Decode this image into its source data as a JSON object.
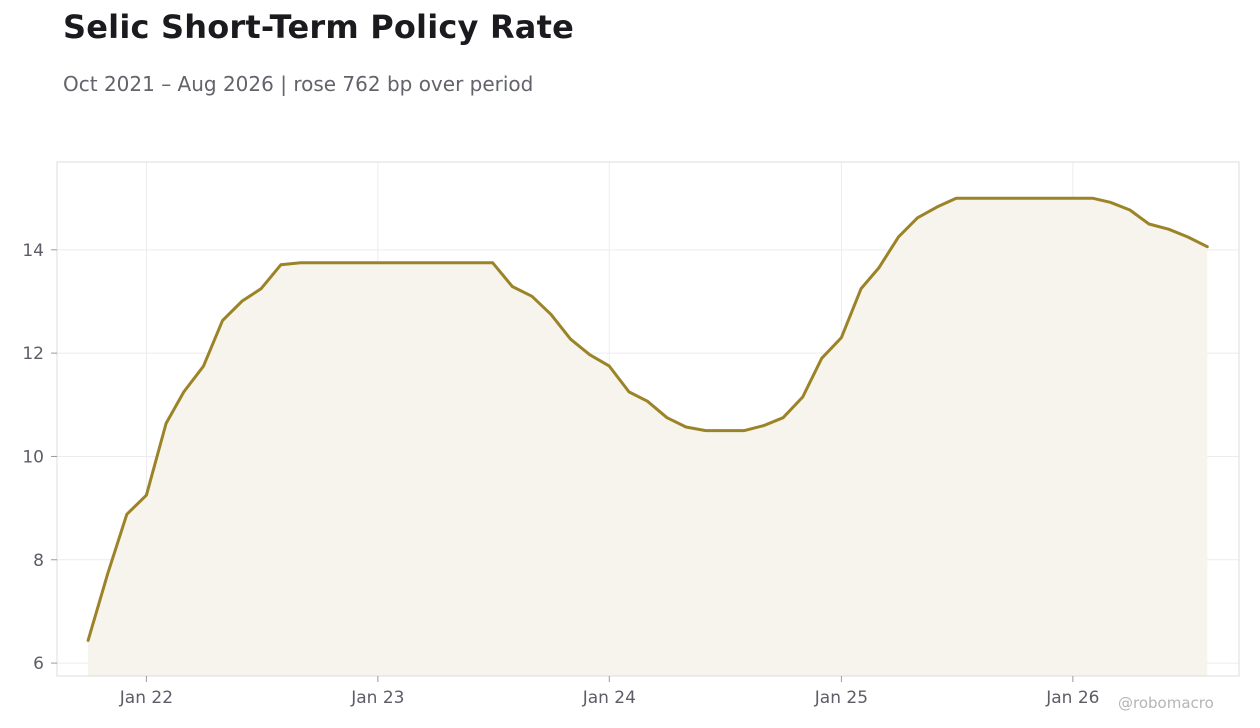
{
  "title": "Selic Short-Term Policy Rate",
  "subtitle": "Oct 2021 – Aug 2026 | rose 762 bp over period",
  "watermark": "@robomacro",
  "colors": {
    "line": "#9b8328",
    "fill": "#f7f4ed",
    "grid": "#ececec",
    "frame": "#dddddd"
  },
  "chart_data": {
    "type": "area",
    "x_type": "date",
    "ylim": [
      5.75,
      15.7
    ],
    "xlim": [
      "2021-08-13",
      "2026-09-20"
    ],
    "grid": true,
    "legend": "none",
    "yticks": [
      6,
      8,
      10,
      12,
      14
    ],
    "xticks": [
      {
        "date": "2022-01-01",
        "label": "Jan 22"
      },
      {
        "date": "2023-01-01",
        "label": "Jan 23"
      },
      {
        "date": "2024-01-01",
        "label": "Jan 24"
      },
      {
        "date": "2025-01-01",
        "label": "Jan 25"
      },
      {
        "date": "2026-01-01",
        "label": "Jan 26"
      }
    ],
    "series": [
      {
        "points": [
          [
            "2021-10-01",
            6.44
          ],
          [
            "2021-11-01",
            7.73
          ],
          [
            "2021-12-01",
            8.88
          ],
          [
            "2022-01-01",
            9.25
          ],
          [
            "2022-02-01",
            10.64
          ],
          [
            "2022-03-01",
            11.25
          ],
          [
            "2022-04-01",
            11.75
          ],
          [
            "2022-05-01",
            12.63
          ],
          [
            "2022-06-01",
            13.01
          ],
          [
            "2022-07-01",
            13.25
          ],
          [
            "2022-08-01",
            13.71
          ],
          [
            "2022-09-01",
            13.75
          ],
          [
            "2022-10-01",
            13.75
          ],
          [
            "2022-11-01",
            13.75
          ],
          [
            "2022-12-01",
            13.75
          ],
          [
            "2023-01-01",
            13.75
          ],
          [
            "2023-02-01",
            13.75
          ],
          [
            "2023-03-01",
            13.75
          ],
          [
            "2023-04-01",
            13.75
          ],
          [
            "2023-05-01",
            13.75
          ],
          [
            "2023-06-01",
            13.75
          ],
          [
            "2023-07-01",
            13.75
          ],
          [
            "2023-08-01",
            13.29
          ],
          [
            "2023-09-01",
            13.1
          ],
          [
            "2023-10-01",
            12.75
          ],
          [
            "2023-11-01",
            12.27
          ],
          [
            "2023-12-01",
            11.97
          ],
          [
            "2024-01-01",
            11.75
          ],
          [
            "2024-02-01",
            11.25
          ],
          [
            "2024-03-01",
            11.07
          ],
          [
            "2024-04-01",
            10.75
          ],
          [
            "2024-05-01",
            10.57
          ],
          [
            "2024-06-01",
            10.5
          ],
          [
            "2024-07-01",
            10.5
          ],
          [
            "2024-08-01",
            10.5
          ],
          [
            "2024-09-01",
            10.6
          ],
          [
            "2024-10-01",
            10.75
          ],
          [
            "2024-11-01",
            11.15
          ],
          [
            "2024-12-01",
            11.9
          ],
          [
            "2025-01-01",
            12.3
          ],
          [
            "2025-02-01",
            13.25
          ],
          [
            "2025-03-01",
            13.65
          ],
          [
            "2025-04-01",
            14.25
          ],
          [
            "2025-05-01",
            14.62
          ],
          [
            "2025-06-01",
            14.83
          ],
          [
            "2025-07-01",
            15.0
          ],
          [
            "2025-08-01",
            15.0
          ],
          [
            "2025-09-01",
            15.0
          ],
          [
            "2025-10-01",
            15.0
          ],
          [
            "2025-11-01",
            15.0
          ],
          [
            "2025-12-01",
            15.0
          ],
          [
            "2026-01-01",
            15.0
          ],
          [
            "2026-02-01",
            15.0
          ],
          [
            "2026-03-01",
            14.92
          ],
          [
            "2026-04-01",
            14.77
          ],
          [
            "2026-05-01",
            14.5
          ],
          [
            "2026-06-01",
            14.4
          ],
          [
            "2026-07-01",
            14.25
          ],
          [
            "2026-08-01",
            14.06
          ]
        ]
      }
    ]
  }
}
